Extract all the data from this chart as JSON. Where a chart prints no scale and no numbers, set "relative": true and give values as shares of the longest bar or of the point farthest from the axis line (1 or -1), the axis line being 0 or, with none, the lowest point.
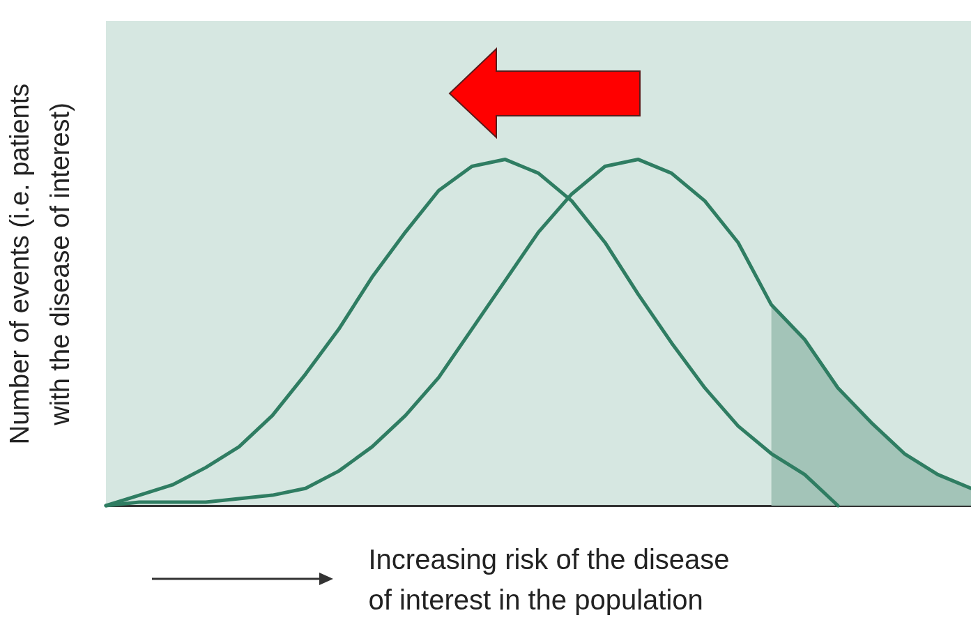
{
  "chart_data": {
    "type": "line",
    "relative": true,
    "xlabel": "Increasing risk of the disease of interest in the population",
    "ylabel": "Number of events (i.e. patients with the disease of interest)",
    "grid": false,
    "marker": "none",
    "line_style": "solid",
    "categories": [
      null,
      null,
      null,
      null,
      null,
      null,
      null,
      null,
      null,
      null,
      null,
      null,
      null,
      null,
      null,
      null,
      null,
      null,
      null,
      null,
      null,
      null,
      null,
      null,
      null,
      null,
      null
    ],
    "series": [
      {
        "type": "area",
        "color": "#a3c4b8",
        "values": [
          null,
          null,
          null,
          null,
          null,
          null,
          null,
          null,
          null,
          null,
          null,
          null,
          null,
          null,
          null,
          null,
          null,
          null,
          null,
          null,
          0.58,
          0.48,
          0.34,
          0.24,
          0.15,
          0.09,
          0.05
        ]
      },
      {
        "color": "#2f7d62",
        "values": [
          0,
          0.03,
          0.06,
          0.11,
          0.17,
          0.26,
          0.38,
          0.51,
          0.66,
          0.79,
          0.91,
          0.98,
          1,
          0.96,
          0.88,
          0.76,
          0.61,
          0.47,
          0.34,
          0.23,
          0.15,
          0.09,
          0,
          null,
          null,
          null,
          null
        ]
      },
      {
        "color": "#2f7d62",
        "values": [
          0,
          0.01,
          0.01,
          0.01,
          0.02,
          0.03,
          0.05,
          0.1,
          0.17,
          0.26,
          0.37,
          0.51,
          0.65,
          0.79,
          0.9,
          0.98,
          1,
          0.96,
          0.88,
          0.76,
          0.58,
          0.48,
          0.34,
          0.24,
          0.15,
          0.09,
          0.05
        ]
      }
    ]
  }
}
